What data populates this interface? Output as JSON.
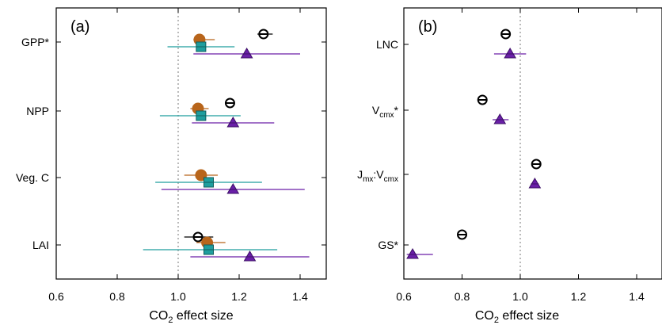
{
  "colors": {
    "observed": "#000000",
    "model_orange": "#b8651b",
    "model_teal": "#1f9e9e",
    "model_purple": "#6a1fa8"
  },
  "chart_data": [
    {
      "panel": "(a)",
      "type": "scatter",
      "xlabel": "CO2 effect size",
      "xlim": [
        0.6,
        1.5
      ],
      "xticks": [
        "0.6",
        "0.8",
        "1.0",
        "1.2",
        "1.4"
      ],
      "reference_line_x": 1.0,
      "categories": [
        "GPP*",
        "NPP",
        "Veg. C",
        "LAI"
      ],
      "series": [
        {
          "marker": "circle-open-bar",
          "color": "#000000",
          "points": [
            {
              "category": "GPP*",
              "value": 1.28,
              "low": 1.26,
              "high": 1.31
            },
            {
              "category": "NPP",
              "value": 1.17,
              "low": 1.17,
              "high": 1.17
            },
            {
              "category": "LAI",
              "value": 1.065,
              "low": 1.02,
              "high": 1.115
            }
          ]
        },
        {
          "marker": "circle",
          "color": "#b8651b",
          "points": [
            {
              "category": "GPP*",
              "value": 1.07,
              "low": 1.05,
              "high": 1.12
            },
            {
              "category": "NPP",
              "value": 1.065,
              "low": 1.04,
              "high": 1.1
            },
            {
              "category": "Veg. C",
              "value": 1.075,
              "low": 1.02,
              "high": 1.13
            },
            {
              "category": "LAI",
              "value": 1.095,
              "low": 1.06,
              "high": 1.155
            }
          ]
        },
        {
          "marker": "square",
          "color": "#1f9e9e",
          "points": [
            {
              "category": "GPP*",
              "value": 1.075,
              "low": 0.965,
              "high": 1.185
            },
            {
              "category": "NPP",
              "value": 1.075,
              "low": 0.94,
              "high": 1.205
            },
            {
              "category": "Veg. C",
              "value": 1.1,
              "low": 0.925,
              "high": 1.275
            },
            {
              "category": "LAI",
              "value": 1.1,
              "low": 0.885,
              "high": 1.325
            }
          ]
        },
        {
          "marker": "triangle",
          "color": "#6a1fa8",
          "points": [
            {
              "category": "GPP*",
              "value": 1.225,
              "low": 1.05,
              "high": 1.4
            },
            {
              "category": "NPP",
              "value": 1.18,
              "low": 1.045,
              "high": 1.315
            },
            {
              "category": "Veg. C",
              "value": 1.18,
              "low": 0.945,
              "high": 1.415
            },
            {
              "category": "LAI",
              "value": 1.235,
              "low": 1.04,
              "high": 1.43
            }
          ]
        }
      ]
    },
    {
      "panel": "(b)",
      "type": "scatter",
      "xlabel": "CO2 effect size",
      "xlim": [
        0.6,
        1.5
      ],
      "xticks": [
        "0.6",
        "0.8",
        "1.0",
        "1.2",
        "1.4"
      ],
      "reference_line_x": 1.0,
      "categories": [
        "LNC",
        "Vcmx*",
        "Jmx:Vcmx",
        "GS*"
      ],
      "series": [
        {
          "marker": "circle-open-bar",
          "color": "#000000",
          "points": [
            {
              "category": "LNC",
              "value": 0.95
            },
            {
              "category": "Vcmx*",
              "value": 0.87
            },
            {
              "category": "Jmx:Vcmx",
              "value": 1.055
            },
            {
              "category": "GS*",
              "value": 0.8
            }
          ]
        },
        {
          "marker": "triangle",
          "color": "#6a1fa8",
          "points": [
            {
              "category": "LNC",
              "value": 0.965,
              "low": 0.91,
              "high": 1.02
            },
            {
              "category": "Vcmx*",
              "value": 0.93,
              "low": 0.905,
              "high": 0.96
            },
            {
              "category": "Jmx:Vcmx",
              "value": 1.05,
              "low": 1.04,
              "high": 1.06
            },
            {
              "category": "GS*",
              "value": 0.63,
              "low": 0.61,
              "high": 0.7
            }
          ]
        }
      ]
    }
  ]
}
